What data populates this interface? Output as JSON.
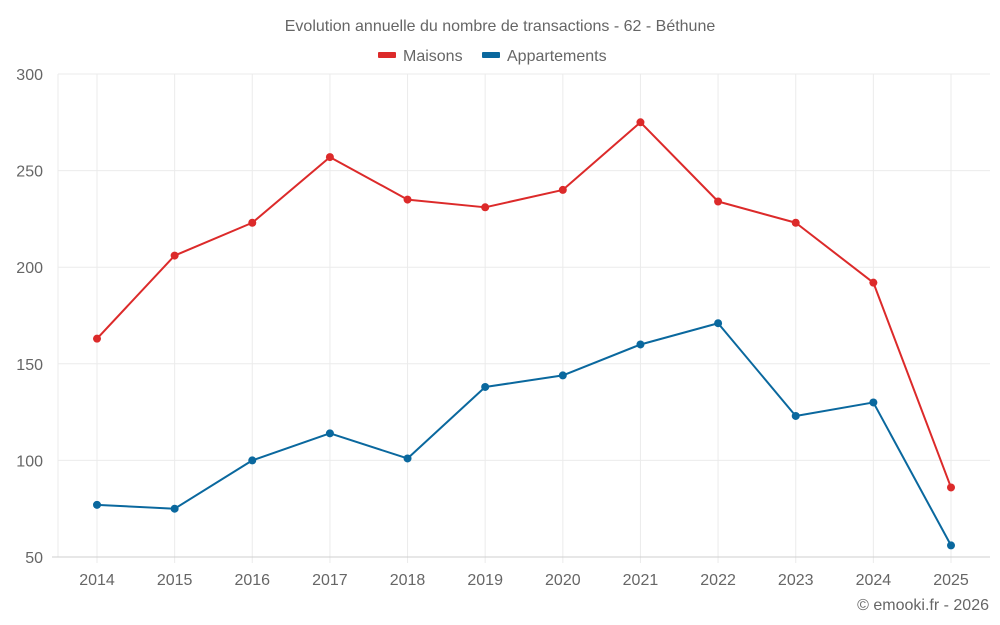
{
  "chart_data": {
    "type": "line",
    "title": "Evolution annuelle du nombre de transactions - 62 - Béthune",
    "xlabel": "",
    "ylabel": "",
    "categories": [
      "2014",
      "2015",
      "2016",
      "2017",
      "2018",
      "2019",
      "2020",
      "2021",
      "2022",
      "2023",
      "2024",
      "2025"
    ],
    "series": [
      {
        "name": "Maisons",
        "color": "#dc2a2a",
        "values": [
          163,
          206,
          223,
          257,
          235,
          231,
          240,
          275,
          234,
          223,
          192,
          86
        ]
      },
      {
        "name": "Appartements",
        "color": "#0a689e",
        "values": [
          77,
          75,
          100,
          114,
          101,
          138,
          144,
          160,
          171,
          123,
          130,
          56
        ]
      }
    ],
    "ylim": [
      50,
      300
    ],
    "yticks": [
      50,
      100,
      150,
      200,
      250,
      300
    ],
    "grid": true,
    "legend": "top-center"
  },
  "credit": "© emooki.fr - 2026"
}
